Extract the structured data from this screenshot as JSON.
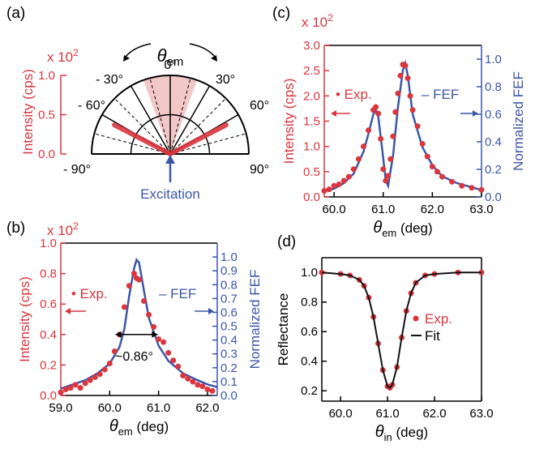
{
  "colors": {
    "red": "#d9363e",
    "blue": "#3b56a8",
    "black": "#111111",
    "shade": "#f2c7c7"
  },
  "panels": {
    "a": {
      "label": "(a)",
      "multiplier": "x 10",
      "multiplier_exp": "2",
      "ylabel": "Intensity (cps)",
      "yticks": [
        "1.0",
        "0.5",
        "0.0"
      ],
      "theta_label": "θ",
      "theta_sub": "em",
      "angle_labels": [
        "0°",
        "- 30°",
        "30°",
        "- 60°",
        "60°",
        "- 90°",
        "90°"
      ],
      "excitation": "Excitation"
    },
    "b": {
      "label": "(b)",
      "multiplier": "x 10",
      "multiplier_exp": "2",
      "fwhm": "~0.86°",
      "exp_label": "• Exp.",
      "fef_label": "– FEF"
    },
    "c": {
      "label": "(c)",
      "multiplier": "x 10",
      "multiplier_exp": "2",
      "exp_label": "• Exp.",
      "fef_label": "– FEF"
    },
    "d": {
      "label": "(d)",
      "exp_label": "Exp.",
      "fit_label": "Fit"
    }
  },
  "chart_data": [
    {
      "panel": "a",
      "type": "polar",
      "title": "",
      "ylabel": "Intensity (cps)",
      "y_multiplier": "x 10^2",
      "r_range": [
        0,
        1.0
      ],
      "r_ticks": [
        0.0,
        0.5,
        1.0
      ],
      "angle_range_deg": [
        -90,
        90
      ],
      "emission_lobes_deg": [
        -62.5,
        62.5
      ],
      "lobe_intensity": 0.8,
      "excitation_cone_deg": [
        -20,
        20
      ]
    },
    {
      "panel": "b",
      "type": "line",
      "xlabel": "θem (deg)",
      "ylabel": "Intensity (cps)",
      "y2label": "Normalized FEF",
      "xlim": [
        59.0,
        62.2
      ],
      "ylim": [
        0,
        1.0
      ],
      "y2lim": [
        0,
        1.1
      ],
      "xticks": [
        "59.0",
        "60.0",
        "61.0",
        "62.0"
      ],
      "yticks": [
        "0.0",
        "0.2",
        "0.4",
        "0.6",
        "0.8",
        "1.0"
      ],
      "y2ticks": [
        "0.0",
        "0.1",
        "0.2",
        "0.3",
        "0.4",
        "0.5",
        "0.6",
        "0.7",
        "0.8",
        "0.9",
        "1.0"
      ],
      "fwhm_deg": 0.86,
      "series": [
        {
          "name": "Exp.",
          "axis": "left",
          "x": [
            59.0,
            59.1,
            59.2,
            59.3,
            59.4,
            59.5,
            59.6,
            59.7,
            59.8,
            59.9,
            60.0,
            60.1,
            60.2,
            60.3,
            60.4,
            60.5,
            60.55,
            60.6,
            60.7,
            60.8,
            60.9,
            61.0,
            61.1,
            61.2,
            61.3,
            61.4,
            61.5,
            61.6,
            61.7,
            61.8,
            61.9,
            62.0,
            62.1
          ],
          "values": [
            0.02,
            0.04,
            0.05,
            0.07,
            0.05,
            0.08,
            0.1,
            0.12,
            0.14,
            0.17,
            0.21,
            0.29,
            0.4,
            0.58,
            0.72,
            0.8,
            0.77,
            0.76,
            0.62,
            0.53,
            0.45,
            0.37,
            0.35,
            0.28,
            0.23,
            0.19,
            0.13,
            0.11,
            0.09,
            0.07,
            0.06,
            0.04,
            0.03
          ]
        },
        {
          "name": "FEF",
          "axis": "right",
          "x": [
            59.0,
            59.25,
            59.5,
            59.75,
            60.0,
            60.2,
            60.3,
            60.4,
            60.5,
            60.55,
            60.6,
            60.7,
            60.8,
            61.0,
            61.2,
            61.5,
            61.8,
            62.0,
            62.2
          ],
          "values": [
            0.05,
            0.08,
            0.11,
            0.16,
            0.23,
            0.35,
            0.48,
            0.72,
            0.92,
            0.98,
            0.96,
            0.76,
            0.56,
            0.36,
            0.25,
            0.16,
            0.11,
            0.08,
            0.06
          ]
        }
      ]
    },
    {
      "panel": "c",
      "type": "line",
      "xlabel": "θem (deg)",
      "ylabel": "Intensity (cps)",
      "y2label": "Normalized FEF",
      "xlim": [
        59.8,
        63.0
      ],
      "ylim": [
        0,
        3.0
      ],
      "y2lim": [
        0,
        1.1
      ],
      "xticks": [
        "60.0",
        "61.0",
        "62.0",
        "63.0"
      ],
      "yticks": [
        "0.0",
        "0.5",
        "1.0",
        "1.5",
        "2.0",
        "2.5",
        "3.0"
      ],
      "y2ticks": [
        "0.0",
        "0.2",
        "0.4",
        "0.6",
        "0.8",
        "1.0"
      ],
      "series": [
        {
          "name": "Exp.",
          "axis": "left",
          "x": [
            59.8,
            59.9,
            60.0,
            60.1,
            60.2,
            60.3,
            60.4,
            60.5,
            60.6,
            60.7,
            60.8,
            60.85,
            60.9,
            60.95,
            61.0,
            61.05,
            61.1,
            61.15,
            61.2,
            61.25,
            61.3,
            61.35,
            61.4,
            61.45,
            61.5,
            61.55,
            61.6,
            61.7,
            61.8,
            61.9,
            62.0,
            62.1,
            62.2,
            62.4,
            62.6,
            62.8,
            63.0
          ],
          "values": [
            0.12,
            0.15,
            0.22,
            0.25,
            0.32,
            0.4,
            0.55,
            0.75,
            1.0,
            1.32,
            1.72,
            1.78,
            1.65,
            1.15,
            0.55,
            0.32,
            0.42,
            0.75,
            1.2,
            1.68,
            2.05,
            2.4,
            2.62,
            2.6,
            2.35,
            2.0,
            1.72,
            1.4,
            1.05,
            0.8,
            0.6,
            0.5,
            0.4,
            0.3,
            0.22,
            0.18,
            0.14
          ]
        },
        {
          "name": "FEF",
          "axis": "right",
          "x": [
            59.8,
            60.0,
            60.2,
            60.4,
            60.6,
            60.7,
            60.8,
            60.85,
            60.9,
            61.0,
            61.05,
            61.1,
            61.2,
            61.3,
            61.4,
            61.45,
            61.5,
            61.6,
            61.8,
            62.0,
            62.2,
            62.5,
            62.8,
            63.0
          ],
          "values": [
            0.04,
            0.06,
            0.1,
            0.17,
            0.33,
            0.46,
            0.6,
            0.63,
            0.58,
            0.28,
            0.12,
            0.08,
            0.3,
            0.65,
            0.92,
            0.97,
            0.88,
            0.6,
            0.36,
            0.23,
            0.15,
            0.1,
            0.07,
            0.05
          ]
        }
      ]
    },
    {
      "panel": "d",
      "type": "line",
      "xlabel": "θin (deg)",
      "ylabel": "Reflectance",
      "xlim": [
        59.6,
        63.0
      ],
      "ylim": [
        0.13,
        1.1
      ],
      "xticks": [
        "60.0",
        "61.0",
        "62.0",
        "63.0"
      ],
      "yticks": [
        "0.2",
        "0.4",
        "0.6",
        "0.8",
        "1.0"
      ],
      "series": [
        {
          "name": "Exp.",
          "x": [
            59.6,
            60.0,
            60.2,
            60.4,
            60.5,
            60.6,
            60.7,
            60.8,
            60.9,
            61.0,
            61.05,
            61.1,
            61.2,
            61.3,
            61.4,
            61.5,
            61.6,
            61.8,
            62.0,
            62.5,
            63.0
          ],
          "values": [
            1.0,
            0.99,
            0.98,
            0.95,
            0.91,
            0.83,
            0.7,
            0.52,
            0.34,
            0.23,
            0.22,
            0.24,
            0.36,
            0.56,
            0.74,
            0.86,
            0.93,
            0.98,
            0.99,
            1.0,
            1.0
          ]
        },
        {
          "name": "Fit",
          "x": [
            59.6,
            60.0,
            60.2,
            60.4,
            60.5,
            60.6,
            60.7,
            60.8,
            60.9,
            61.0,
            61.05,
            61.1,
            61.2,
            61.3,
            61.4,
            61.5,
            61.6,
            61.8,
            62.0,
            62.5,
            63.0
          ],
          "values": [
            1.0,
            0.99,
            0.98,
            0.95,
            0.91,
            0.83,
            0.7,
            0.52,
            0.34,
            0.23,
            0.22,
            0.24,
            0.36,
            0.56,
            0.74,
            0.86,
            0.93,
            0.98,
            0.99,
            1.0,
            1.0
          ]
        }
      ]
    }
  ]
}
